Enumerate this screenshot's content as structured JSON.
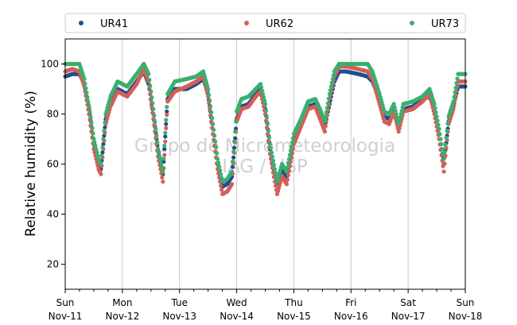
{
  "chart_data": {
    "type": "scatter",
    "title": "",
    "xlabel": "",
    "ylabel": "Relative humidity (%)",
    "ylim": [
      10,
      110
    ],
    "xlim": [
      "2019-11-11 00:00",
      "2019-11-18 00:00"
    ],
    "yticks": [
      20,
      40,
      60,
      80,
      100
    ],
    "xticks": [
      {
        "day": "Sun",
        "date": "Nov-11"
      },
      {
        "day": "Mon",
        "date": "Nov-12"
      },
      {
        "day": "Tue",
        "date": "Nov-13"
      },
      {
        "day": "Wed",
        "date": "Nov-14"
      },
      {
        "day": "Thu",
        "date": "Nov-15"
      },
      {
        "day": "Fri",
        "date": "Nov-16"
      },
      {
        "day": "Sat",
        "date": "Nov-17"
      },
      {
        "day": "Sun",
        "date": "Nov-18"
      }
    ],
    "grid": "vertical",
    "legend_position": "top",
    "watermark": [
      "Grupo de Micrometeorologia",
      "IAG / USP"
    ],
    "series": [
      {
        "name": "UR41",
        "color": "#1f4e8c",
        "points": [
          [
            "2019-11-11 00:00",
            95
          ],
          [
            "2019-11-11 03:00",
            96
          ],
          [
            "2019-11-11 06:00",
            96
          ],
          [
            "2019-11-11 08:00",
            92
          ],
          [
            "2019-11-11 10:00",
            82
          ],
          [
            "2019-11-11 12:00",
            68
          ],
          [
            "2019-11-11 14:00",
            60
          ],
          [
            "2019-11-11 15:00",
            58
          ],
          [
            "2019-11-11 17:00",
            78
          ],
          [
            "2019-11-11 19:00",
            84
          ],
          [
            "2019-11-11 22:00",
            90
          ],
          [
            "2019-11-12 02:00",
            88
          ],
          [
            "2019-11-12 06:00",
            93
          ],
          [
            "2019-11-12 09:00",
            97
          ],
          [
            "2019-11-12 11:00",
            92
          ],
          [
            "2019-11-12 13:00",
            80
          ],
          [
            "2019-11-12 15:00",
            65
          ],
          [
            "2019-11-12 17:00",
            56
          ],
          [
            "2019-11-12 19:00",
            86
          ],
          [
            "2019-11-12 22:00",
            90
          ],
          [
            "2019-11-13 03:00",
            90
          ],
          [
            "2019-11-13 07:00",
            92
          ],
          [
            "2019-11-13 10:00",
            94
          ],
          [
            "2019-11-13 12:00",
            88
          ],
          [
            "2019-11-13 14:00",
            74
          ],
          [
            "2019-11-13 16:00",
            60
          ],
          [
            "2019-11-13 18:00",
            51
          ],
          [
            "2019-11-13 20:00",
            52
          ],
          [
            "2019-11-13 22:00",
            55
          ],
          [
            "2019-11-14 00:00",
            78
          ],
          [
            "2019-11-14 02:00",
            83
          ],
          [
            "2019-11-14 05:00",
            84
          ],
          [
            "2019-11-14 08:00",
            88
          ],
          [
            "2019-11-14 10:00",
            90
          ],
          [
            "2019-11-14 12:00",
            82
          ],
          [
            "2019-11-14 14:00",
            66
          ],
          [
            "2019-11-14 16:00",
            56
          ],
          [
            "2019-11-14 17:00",
            52
          ],
          [
            "2019-11-14 19:00",
            58
          ],
          [
            "2019-11-14 21:00",
            55
          ],
          [
            "2019-11-15 00:00",
            70
          ],
          [
            "2019-11-15 03:00",
            76
          ],
          [
            "2019-11-15 06:00",
            83
          ],
          [
            "2019-11-15 09:00",
            84
          ],
          [
            "2019-11-15 11:00",
            80
          ],
          [
            "2019-11-15 13:00",
            75
          ],
          [
            "2019-11-15 15:00",
            84
          ],
          [
            "2019-11-15 17:00",
            93
          ],
          [
            "2019-11-15 19:00",
            97
          ],
          [
            "2019-11-15 22:00",
            97
          ],
          [
            "2019-11-16 03:00",
            96
          ],
          [
            "2019-11-16 07:00",
            95
          ],
          [
            "2019-11-16 09:00",
            93
          ],
          [
            "2019-11-16 12:00",
            86
          ],
          [
            "2019-11-16 14:00",
            79
          ],
          [
            "2019-11-16 16:00",
            78
          ],
          [
            "2019-11-16 18:00",
            82
          ],
          [
            "2019-11-16 20:00",
            74
          ],
          [
            "2019-11-16 22:00",
            82
          ],
          [
            "2019-11-17 02:00",
            83
          ],
          [
            "2019-11-17 06:00",
            86
          ],
          [
            "2019-11-17 09:00",
            87
          ],
          [
            "2019-11-17 11:00",
            82
          ],
          [
            "2019-11-17 13:00",
            72
          ],
          [
            "2019-11-17 15:00",
            60
          ],
          [
            "2019-11-17 17:00",
            77
          ],
          [
            "2019-11-17 19:00",
            83
          ],
          [
            "2019-11-17 21:00",
            91
          ],
          [
            "2019-11-18 00:00",
            91
          ]
        ]
      },
      {
        "name": "UR62",
        "color": "#d45f5a",
        "points": [
          [
            "2019-11-11 00:00",
            97
          ],
          [
            "2019-11-11 03:00",
            98
          ],
          [
            "2019-11-11 06:00",
            97
          ],
          [
            "2019-11-11 08:00",
            91
          ],
          [
            "2019-11-11 10:00",
            80
          ],
          [
            "2019-11-11 12:00",
            66
          ],
          [
            "2019-11-11 14:00",
            58
          ],
          [
            "2019-11-11 15:00",
            56
          ],
          [
            "2019-11-11 17:00",
            76
          ],
          [
            "2019-11-11 19:00",
            83
          ],
          [
            "2019-11-11 22:00",
            89
          ],
          [
            "2019-11-12 02:00",
            87
          ],
          [
            "2019-11-12 06:00",
            92
          ],
          [
            "2019-11-12 09:00",
            98
          ],
          [
            "2019-11-12 11:00",
            93
          ],
          [
            "2019-11-12 13:00",
            78
          ],
          [
            "2019-11-12 15:00",
            63
          ],
          [
            "2019-11-12 17:00",
            53
          ],
          [
            "2019-11-12 19:00",
            85
          ],
          [
            "2019-11-12 22:00",
            89
          ],
          [
            "2019-11-13 03:00",
            91
          ],
          [
            "2019-11-13 07:00",
            93
          ],
          [
            "2019-11-13 10:00",
            95
          ],
          [
            "2019-11-13 12:00",
            87
          ],
          [
            "2019-11-13 14:00",
            72
          ],
          [
            "2019-11-13 16:00",
            58
          ],
          [
            "2019-11-13 18:00",
            48
          ],
          [
            "2019-11-13 20:00",
            49
          ],
          [
            "2019-11-13 22:00",
            52
          ],
          [
            "2019-11-14 00:00",
            77
          ],
          [
            "2019-11-14 02:00",
            82
          ],
          [
            "2019-11-14 05:00",
            83
          ],
          [
            "2019-11-14 08:00",
            87
          ],
          [
            "2019-11-14 10:00",
            89
          ],
          [
            "2019-11-14 12:00",
            80
          ],
          [
            "2019-11-14 14:00",
            64
          ],
          [
            "2019-11-14 16:00",
            53
          ],
          [
            "2019-11-14 17:00",
            48
          ],
          [
            "2019-11-14 19:00",
            55
          ],
          [
            "2019-11-14 21:00",
            52
          ],
          [
            "2019-11-15 00:00",
            68
          ],
          [
            "2019-11-15 03:00",
            75
          ],
          [
            "2019-11-15 06:00",
            82
          ],
          [
            "2019-11-15 09:00",
            83
          ],
          [
            "2019-11-15 11:00",
            78
          ],
          [
            "2019-11-15 13:00",
            73
          ],
          [
            "2019-11-15 15:00",
            86
          ],
          [
            "2019-11-15 17:00",
            95
          ],
          [
            "2019-11-15 19:00",
            99
          ],
          [
            "2019-11-15 22:00",
            99
          ],
          [
            "2019-11-16 03:00",
            98
          ],
          [
            "2019-11-16 07:00",
            97
          ],
          [
            "2019-11-16 09:00",
            94
          ],
          [
            "2019-11-16 12:00",
            84
          ],
          [
            "2019-11-16 14:00",
            77
          ],
          [
            "2019-11-16 16:00",
            76
          ],
          [
            "2019-11-16 18:00",
            81
          ],
          [
            "2019-11-16 20:00",
            73
          ],
          [
            "2019-11-16 22:00",
            81
          ],
          [
            "2019-11-17 02:00",
            82
          ],
          [
            "2019-11-17 06:00",
            85
          ],
          [
            "2019-11-17 09:00",
            88
          ],
          [
            "2019-11-17 11:00",
            80
          ],
          [
            "2019-11-17 13:00",
            70
          ],
          [
            "2019-11-17 15:00",
            57
          ],
          [
            "2019-11-17 17:00",
            76
          ],
          [
            "2019-11-17 19:00",
            82
          ],
          [
            "2019-11-17 21:00",
            93
          ],
          [
            "2019-11-18 00:00",
            93
          ]
        ]
      },
      {
        "name": "UR73",
        "color": "#3aaf6f",
        "points": [
          [
            "2019-11-11 00:00",
            100
          ],
          [
            "2019-11-11 03:00",
            100
          ],
          [
            "2019-11-11 06:00",
            100
          ],
          [
            "2019-11-11 08:00",
            94
          ],
          [
            "2019-11-11 10:00",
            83
          ],
          [
            "2019-11-11 12:00",
            70
          ],
          [
            "2019-11-11 14:00",
            62
          ],
          [
            "2019-11-11 15:00",
            60
          ],
          [
            "2019-11-11 17:00",
            80
          ],
          [
            "2019-11-11 19:00",
            87
          ],
          [
            "2019-11-11 22:00",
            93
          ],
          [
            "2019-11-12 02:00",
            91
          ],
          [
            "2019-11-12 06:00",
            96
          ],
          [
            "2019-11-12 09:00",
            100
          ],
          [
            "2019-11-12 11:00",
            96
          ],
          [
            "2019-11-12 13:00",
            82
          ],
          [
            "2019-11-12 15:00",
            66
          ],
          [
            "2019-11-12 17:00",
            57
          ],
          [
            "2019-11-12 19:00",
            88
          ],
          [
            "2019-11-12 22:00",
            93
          ],
          [
            "2019-11-13 03:00",
            94
          ],
          [
            "2019-11-13 07:00",
            95
          ],
          [
            "2019-11-13 10:00",
            97
          ],
          [
            "2019-11-13 12:00",
            90
          ],
          [
            "2019-11-13 14:00",
            76
          ],
          [
            "2019-11-13 16:00",
            62
          ],
          [
            "2019-11-13 18:00",
            53
          ],
          [
            "2019-11-13 20:00",
            54
          ],
          [
            "2019-11-13 22:00",
            57
          ],
          [
            "2019-11-14 00:00",
            81
          ],
          [
            "2019-11-14 02:00",
            86
          ],
          [
            "2019-11-14 05:00",
            87
          ],
          [
            "2019-11-14 08:00",
            90
          ],
          [
            "2019-11-14 10:00",
            92
          ],
          [
            "2019-11-14 12:00",
            84
          ],
          [
            "2019-11-14 14:00",
            68
          ],
          [
            "2019-11-14 16:00",
            58
          ],
          [
            "2019-11-14 17:00",
            53
          ],
          [
            "2019-11-14 19:00",
            60
          ],
          [
            "2019-11-14 21:00",
            57
          ],
          [
            "2019-11-15 00:00",
            72
          ],
          [
            "2019-11-15 03:00",
            78
          ],
          [
            "2019-11-15 06:00",
            85
          ],
          [
            "2019-11-15 09:00",
            86
          ],
          [
            "2019-11-15 11:00",
            82
          ],
          [
            "2019-11-15 13:00",
            77
          ],
          [
            "2019-11-15 15:00",
            88
          ],
          [
            "2019-11-15 17:00",
            97
          ],
          [
            "2019-11-15 19:00",
            100
          ],
          [
            "2019-11-15 22:00",
            100
          ],
          [
            "2019-11-16 03:00",
            100
          ],
          [
            "2019-11-16 07:00",
            100
          ],
          [
            "2019-11-16 09:00",
            97
          ],
          [
            "2019-11-16 12:00",
            88
          ],
          [
            "2019-11-16 14:00",
            81
          ],
          [
            "2019-11-16 16:00",
            80
          ],
          [
            "2019-11-16 18:00",
            84
          ],
          [
            "2019-11-16 20:00",
            76
          ],
          [
            "2019-11-16 22:00",
            84
          ],
          [
            "2019-11-17 02:00",
            85
          ],
          [
            "2019-11-17 06:00",
            87
          ],
          [
            "2019-11-17 09:00",
            90
          ],
          [
            "2019-11-17 11:00",
            84
          ],
          [
            "2019-11-17 13:00",
            74
          ],
          [
            "2019-11-17 15:00",
            62
          ],
          [
            "2019-11-17 17:00",
            79
          ],
          [
            "2019-11-17 19:00",
            85
          ],
          [
            "2019-11-17 21:00",
            96
          ],
          [
            "2019-11-18 00:00",
            96
          ]
        ]
      }
    ]
  }
}
